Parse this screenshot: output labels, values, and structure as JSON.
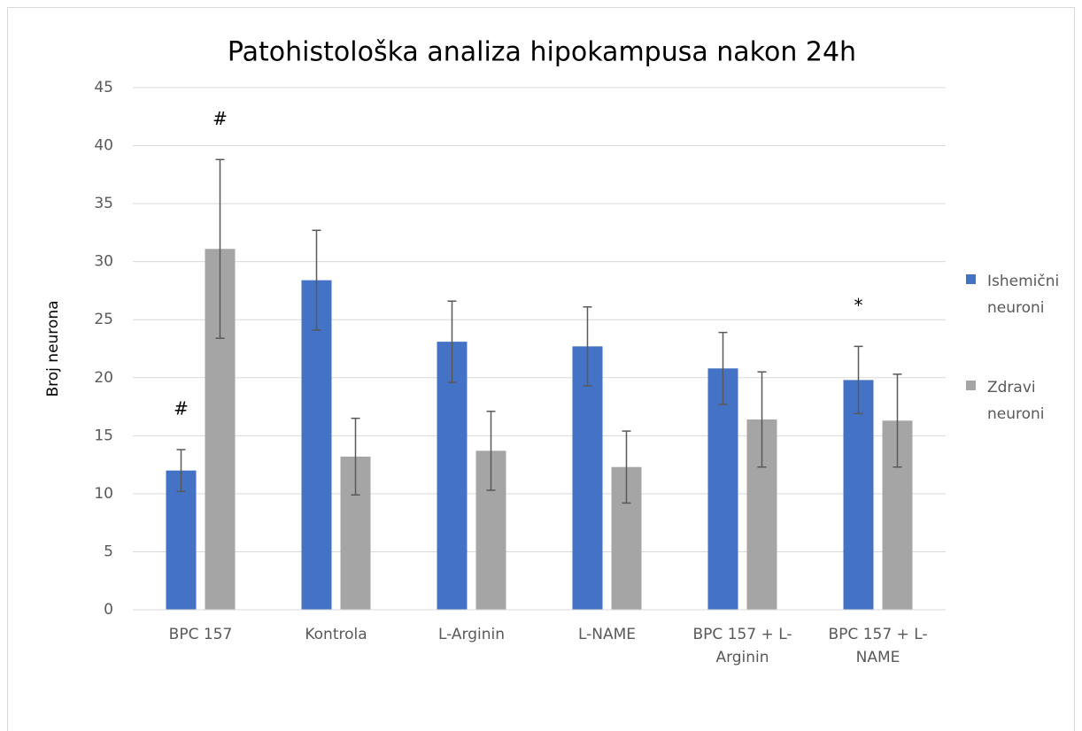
{
  "chart_data": {
    "type": "bar",
    "title": "Patohistološka analiza hipokampusa nakon 24h",
    "ylabel": "Broj neurona",
    "categories": [
      "BPC 157",
      "Kontrola",
      "L-Arginin",
      "L-NAME",
      "BPC 157 + L-Arginin",
      "BPC 157 + L-NAME"
    ],
    "series": [
      {
        "name": "Ishemični neuroni",
        "color": "#4472c4",
        "values": [
          12.0,
          28.4,
          23.1,
          22.7,
          20.8,
          19.8
        ],
        "errors": [
          1.8,
          4.3,
          3.5,
          3.4,
          3.1,
          2.9
        ]
      },
      {
        "name": "Zdravi neuroni",
        "color": "#a5a5a5",
        "values": [
          31.1,
          13.2,
          13.7,
          12.3,
          16.4,
          16.3
        ],
        "errors": [
          7.7,
          3.3,
          3.4,
          3.1,
          4.1,
          4.0
        ]
      }
    ],
    "annotations": [
      {
        "text": "#",
        "series": 0,
        "category": 0
      },
      {
        "text": "#",
        "series": 1,
        "category": 0
      },
      {
        "text": "*",
        "series": 0,
        "category": 5
      }
    ],
    "ylim": [
      0,
      45
    ],
    "yticks": [
      0,
      5,
      10,
      15,
      20,
      25,
      30,
      35,
      40,
      45
    ],
    "grid": true,
    "legend": "right"
  }
}
